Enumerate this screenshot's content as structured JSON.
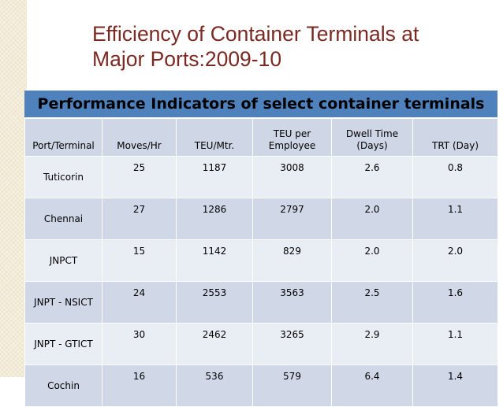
{
  "slide": {
    "title_line1": "Efficiency of Container Terminals at",
    "title_line2": "Major Ports:2009-10"
  },
  "table": {
    "caption": "Performance Indicators of select container terminals",
    "headers": {
      "port": "Port/Terminal",
      "moves": "Moves/Hr",
      "teu_mtr": "TEU/Mtr.",
      "teu_per_line1": "TEU per",
      "teu_per_line2": "Employee",
      "dwell_line1": "Dwell Time",
      "dwell_line2": "(Days)",
      "trt": "TRT (Day)"
    },
    "rows": [
      {
        "port": "Tuticorin",
        "moves": "25",
        "teu_mtr": "1187",
        "teu_emp": "3008",
        "dwell": "2.6",
        "trt": "0.8"
      },
      {
        "port": "Chennai",
        "moves": "27",
        "teu_mtr": "1286",
        "teu_emp": "2797",
        "dwell": "2.0",
        "trt": "1.1"
      },
      {
        "port": "JNPCT",
        "moves": "15",
        "teu_mtr": "1142",
        "teu_emp": "829",
        "dwell": "2.0",
        "trt": "2.0"
      },
      {
        "port": "JNPT - NSICT",
        "moves": "24",
        "teu_mtr": "2553",
        "teu_emp": "3563",
        "dwell": "2.5",
        "trt": "1.6"
      },
      {
        "port": "JNPT - GTICT",
        "moves": "30",
        "teu_mtr": "2462",
        "teu_emp": "3265",
        "dwell": "2.9",
        "trt": "1.1"
      },
      {
        "port": "Cochin",
        "moves": "16",
        "teu_mtr": "536",
        "teu_emp": "579",
        "dwell": "6.4",
        "trt": "1.4"
      }
    ]
  },
  "colors": {
    "title": "#7a2a22",
    "caption_bg": "#4f81bd",
    "header_bg": "#cfd7e7",
    "row_light": "#e9edf4",
    "row_dark": "#d0d8e8",
    "side_panel": "#f6f0df"
  }
}
